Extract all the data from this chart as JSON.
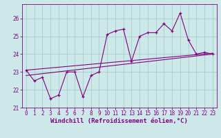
{
  "title": "",
  "xlabel": "Windchill (Refroidissement éolien,°C)",
  "ylabel": "",
  "background_color": "#cce8e8",
  "line_color": "#800080",
  "grid_color": "#aacccc",
  "xlim": [
    -0.5,
    23.5
  ],
  "ylim": [
    21.0,
    26.8
  ],
  "yticks": [
    21,
    22,
    23,
    24,
    25,
    26
  ],
  "xticks": [
    0,
    1,
    2,
    3,
    4,
    5,
    6,
    7,
    8,
    9,
    10,
    11,
    12,
    13,
    14,
    15,
    16,
    17,
    18,
    19,
    20,
    21,
    22,
    23
  ],
  "series1_x": [
    0,
    1,
    2,
    3,
    4,
    5,
    6,
    7,
    8,
    9,
    10,
    11,
    12,
    13,
    14,
    15,
    16,
    17,
    18,
    19,
    20,
    21,
    22,
    23
  ],
  "series1_y": [
    23.1,
    22.5,
    22.7,
    21.5,
    21.7,
    23.0,
    23.0,
    21.6,
    22.8,
    23.0,
    25.1,
    25.3,
    25.4,
    23.6,
    25.0,
    25.2,
    25.2,
    25.7,
    25.3,
    26.3,
    24.8,
    24.0,
    24.1,
    24.0
  ],
  "series2_x": [
    0,
    23
  ],
  "series2_y": [
    22.8,
    24.0
  ],
  "series3_x": [
    0,
    23
  ],
  "series3_y": [
    23.1,
    24.05
  ],
  "tick_fontsize": 5.5,
  "xlabel_fontsize": 6.5
}
